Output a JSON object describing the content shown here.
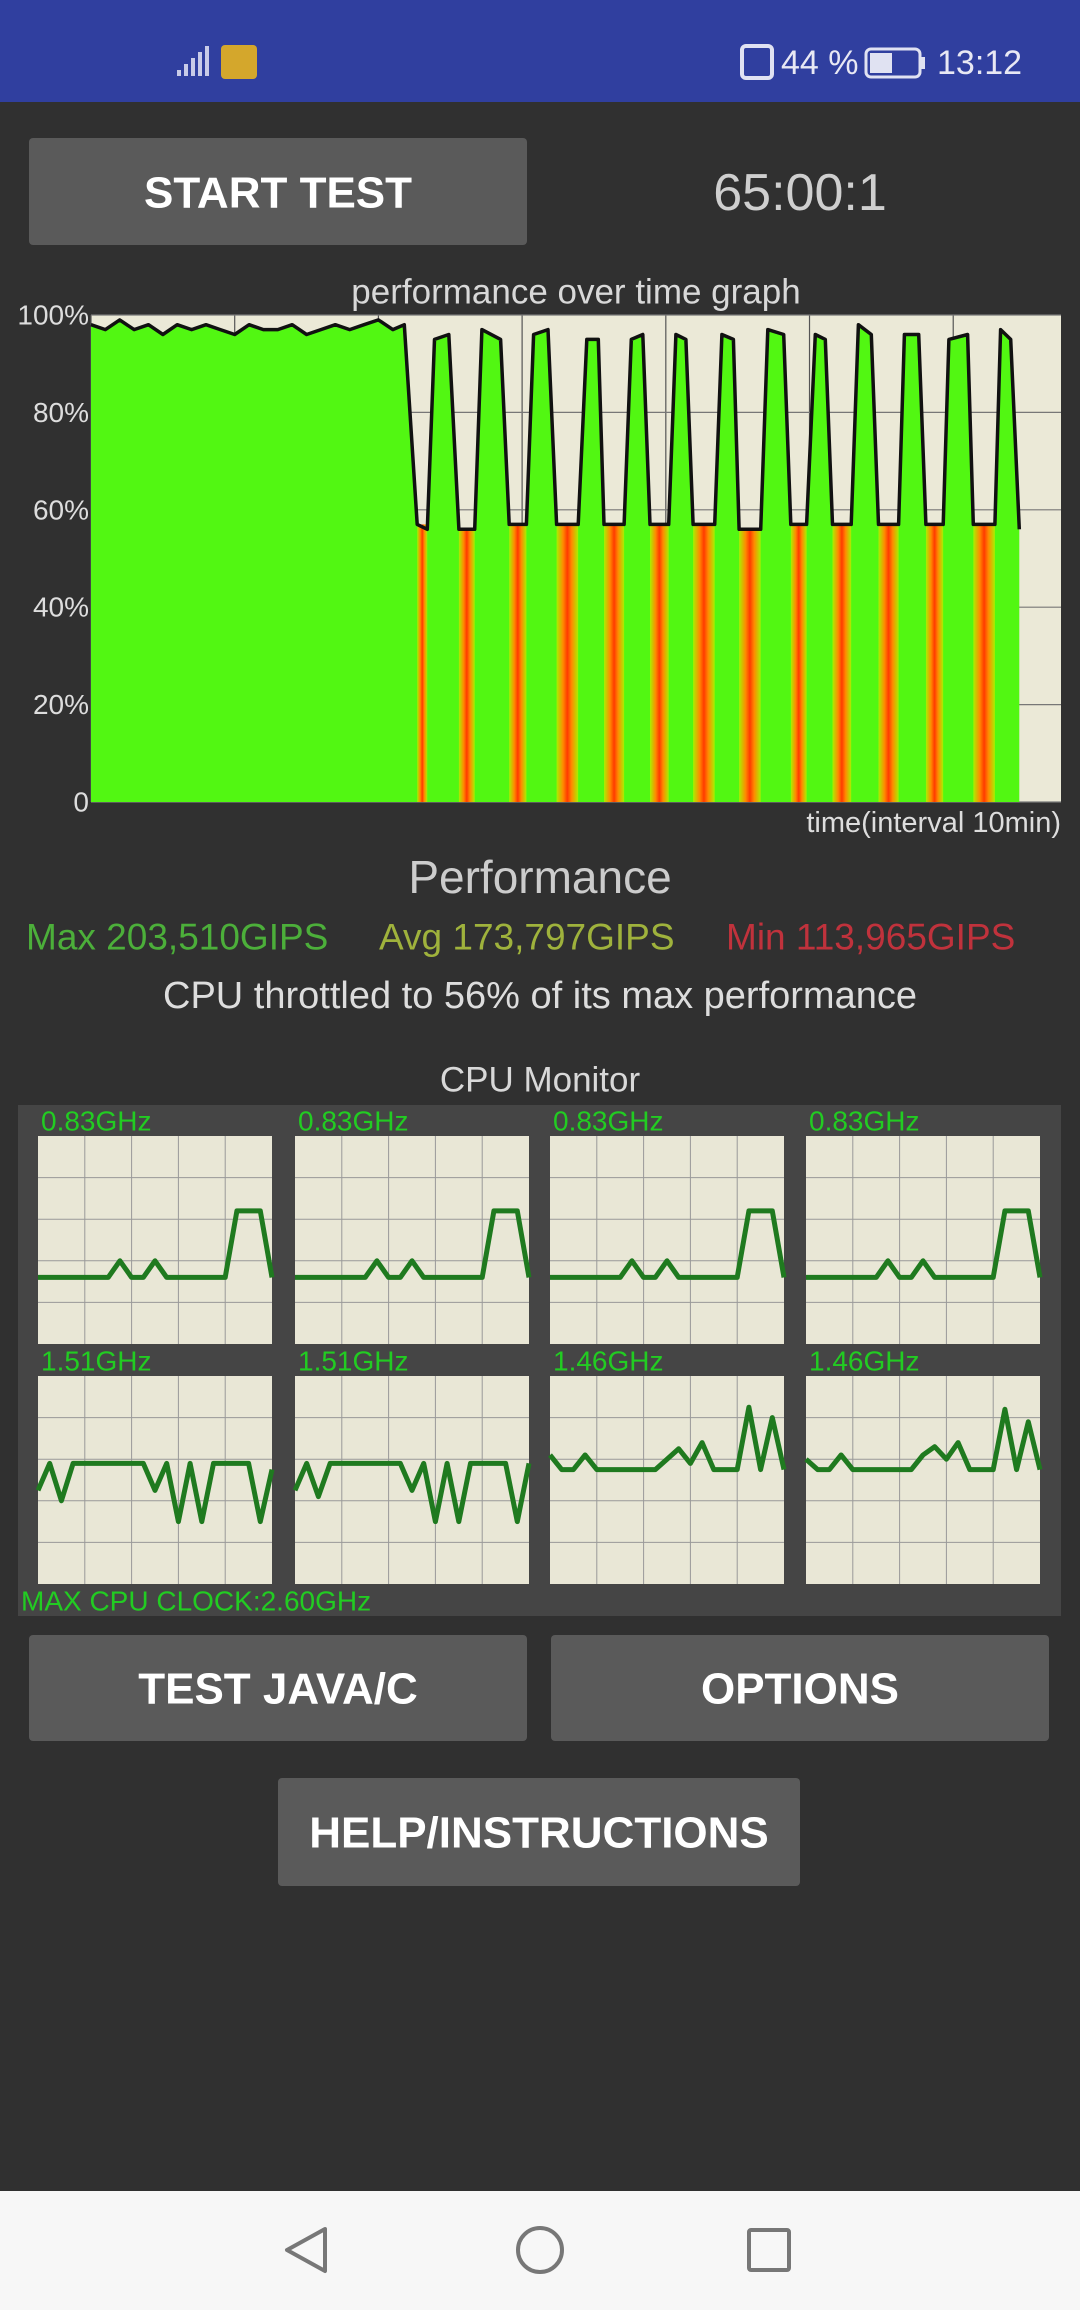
{
  "status_bar": {
    "battery": "44 %",
    "time": "13:12"
  },
  "buttons": {
    "start": "START TEST",
    "java": "TEST JAVA/C",
    "options": "OPTIONS",
    "help": "HELP/INSTRUCTIONS"
  },
  "timer": "65:00:1",
  "chart_data": {
    "type": "line",
    "title": "performance over time graph",
    "x_label": "time(interval 10min)",
    "x": [
      0,
      1,
      2,
      3,
      4,
      5,
      6,
      7,
      8,
      9,
      10,
      11,
      12,
      13,
      14,
      15,
      16,
      17,
      18,
      19,
      20,
      21,
      21.8,
      22.7,
      23.4,
      23.9,
      24.9,
      25.6,
      26.7,
      27.2,
      28.5,
      29.1,
      30.3,
      30.8,
      31.8,
      32.4,
      33.9,
      34.5,
      35.3,
      35.7,
      37.1,
      37.6,
      38.4,
      38.9,
      40.2,
      40.7,
      41.4,
      41.9,
      43.4,
      43.9,
      44.7,
      45.1,
      46.6,
      47.1,
      48.2,
      48.7,
      49.8,
      50.4,
      51.1,
      51.6,
      52.9,
      53.4,
      54.3,
      54.8,
      56.2,
      56.6,
      57.6,
      58.1,
      59.3,
      59.7,
      61.0,
      61.4,
      62.9,
      63.3,
      64.0,
      64.6
    ],
    "values": [
      98,
      97,
      99,
      97,
      98,
      96,
      98,
      97,
      98,
      97,
      96,
      98,
      97,
      97,
      98,
      96,
      97,
      98,
      97,
      98,
      99,
      97,
      98,
      57,
      56,
      95,
      96,
      56,
      56,
      97,
      95,
      57,
      57,
      96,
      97,
      57,
      57,
      95,
      95,
      57,
      57,
      95,
      96,
      57,
      57,
      96,
      95,
      57,
      57,
      96,
      95,
      56,
      56,
      97,
      96,
      57,
      57,
      96,
      95,
      57,
      57,
      98,
      96,
      57,
      57,
      96,
      96,
      57,
      57,
      95,
      96,
      57,
      57,
      97,
      95,
      56
    ],
    "color": "#111111",
    "fill_color": "#52f712",
    "low_color": "#ff3a00",
    "xlim": [
      0,
      67.5
    ],
    "xticks": [
      0,
      10,
      20,
      30,
      40,
      50,
      60
    ],
    "ylim": [
      0,
      100
    ],
    "yticks": [
      0,
      {
        "value": 20,
        "label": "20%"
      },
      {
        "value": 40,
        "label": "40%"
      },
      {
        "value": 60,
        "label": "60%"
      },
      {
        "value": 80,
        "label": "80%"
      },
      {
        "value": 100,
        "label": "100%"
      }
    ],
    "grid": true
  },
  "performance": {
    "title": "Performance",
    "max": "Max 203,510GIPS",
    "avg": "Avg 173,797GIPS",
    "min": "Min 113,965GIPS",
    "note": "CPU throttled to 56% of its max performance"
  },
  "cpu_monitor": {
    "title": "CPU Monitor",
    "footer": "MAX CPU CLOCK:2.60GHz",
    "cores": [
      {
        "label": "0.83GHz",
        "values": [
          32,
          32,
          32,
          32,
          32,
          32,
          32,
          40,
          32,
          32,
          40,
          32,
          32,
          32,
          32,
          32,
          32,
          64,
          64,
          64,
          32
        ]
      },
      {
        "label": "0.83GHz",
        "values": [
          32,
          32,
          32,
          32,
          32,
          32,
          32,
          40,
          32,
          32,
          40,
          32,
          32,
          32,
          32,
          32,
          32,
          64,
          64,
          64,
          32
        ]
      },
      {
        "label": "0.83GHz",
        "values": [
          32,
          32,
          32,
          32,
          32,
          32,
          32,
          40,
          32,
          32,
          40,
          32,
          32,
          32,
          32,
          32,
          32,
          64,
          64,
          64,
          32
        ]
      },
      {
        "label": "0.83GHz",
        "values": [
          32,
          32,
          32,
          32,
          32,
          32,
          32,
          40,
          32,
          32,
          40,
          32,
          32,
          32,
          32,
          32,
          32,
          64,
          64,
          64,
          32
        ]
      },
      {
        "label": "1.51GHz",
        "values": [
          45,
          58,
          40,
          58,
          58,
          58,
          58,
          58,
          58,
          58,
          45,
          58,
          30,
          58,
          30,
          58,
          58,
          58,
          58,
          30,
          55
        ]
      },
      {
        "label": "1.51GHz",
        "values": [
          45,
          58,
          42,
          58,
          58,
          58,
          58,
          58,
          58,
          58,
          45,
          58,
          30,
          58,
          30,
          58,
          58,
          58,
          58,
          30,
          58
        ]
      },
      {
        "label": "1.46GHz",
        "values": [
          62,
          55,
          55,
          62,
          55,
          55,
          55,
          55,
          55,
          55,
          60,
          65,
          58,
          68,
          55,
          55,
          55,
          85,
          55,
          80,
          55
        ]
      },
      {
        "label": "1.46GHz",
        "values": [
          60,
          55,
          55,
          62,
          55,
          55,
          55,
          55,
          55,
          55,
          62,
          66,
          60,
          68,
          55,
          55,
          55,
          84,
          55,
          78,
          55
        ]
      }
    ]
  }
}
